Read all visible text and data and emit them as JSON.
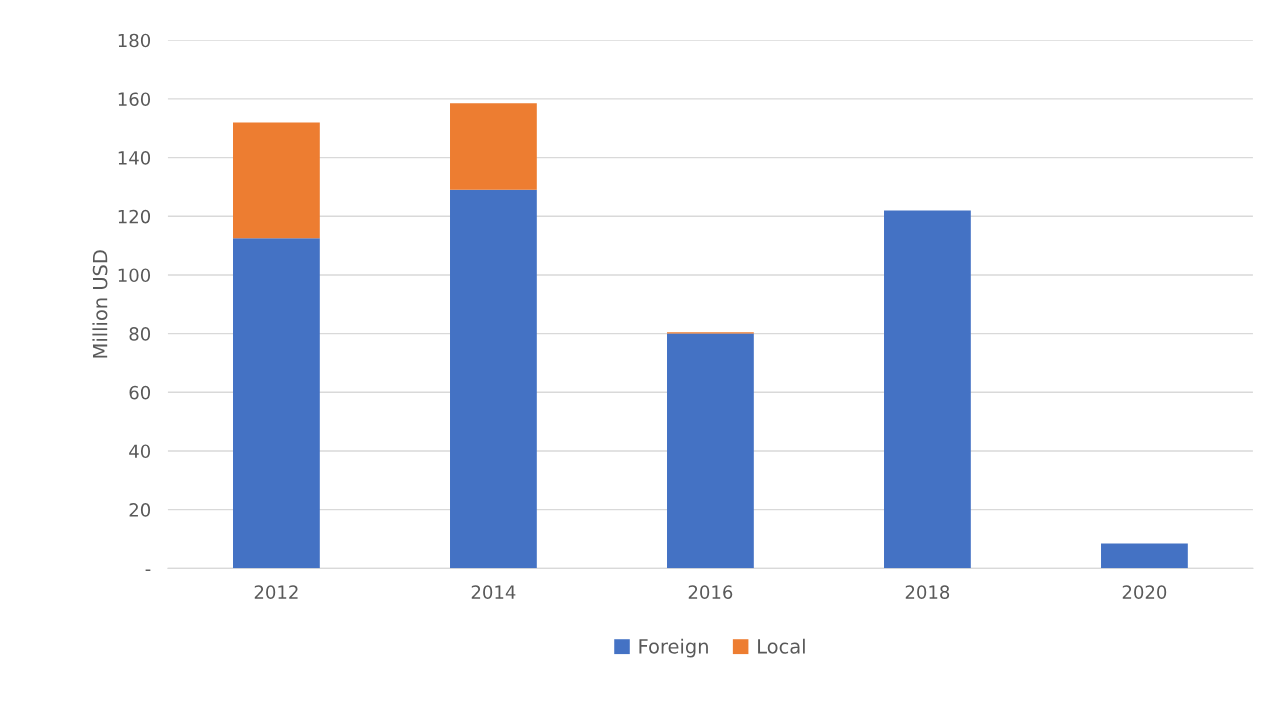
{
  "chart_data": {
    "type": "bar",
    "stacked": true,
    "ylabel": "Million USD",
    "categories": [
      "2012",
      "2014",
      "2016",
      "2018",
      "2020"
    ],
    "series": [
      {
        "name": "Foreign",
        "color": "#4472c4",
        "values": [
          112.5,
          129,
          80,
          122,
          8.5
        ]
      },
      {
        "name": "Local",
        "color": "#ed7d31",
        "values": [
          39.5,
          29.5,
          0.5,
          0,
          0
        ]
      }
    ],
    "ylim": [
      0,
      180
    ],
    "yticks": [
      {
        "value": 0,
        "label": "-"
      },
      20,
      40,
      60,
      80,
      100,
      120,
      140,
      160,
      180
    ],
    "grid": "y",
    "legend": "bottom"
  }
}
